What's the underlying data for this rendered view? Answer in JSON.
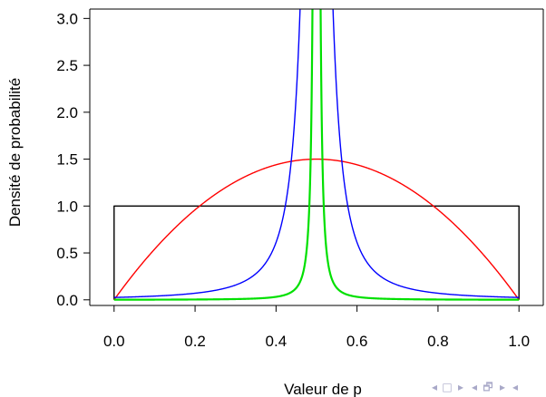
{
  "chart_data": {
    "type": "line",
    "title": "",
    "xlabel": "Valeur de p",
    "ylabel": "Densité de probabilité",
    "xlim": [
      -0.06,
      1.06
    ],
    "ylim": [
      -0.06,
      3.1
    ],
    "x_ticks": [
      "0.0",
      "0.2",
      "0.4",
      "0.6",
      "0.8",
      "1.0"
    ],
    "y_ticks": [
      "0.0",
      "0.5",
      "1.0",
      "1.5",
      "2.0",
      "2.5",
      "3.0"
    ],
    "grid": false,
    "legend": "none",
    "series": [
      {
        "distribution": "uniform",
        "alpha": 1,
        "beta": 1,
        "color": "#000000"
      },
      {
        "distribution": "beta",
        "alpha": 2,
        "beta": 2,
        "color": "#ff0000"
      },
      {
        "distribution": "cauchy",
        "location": 0.5,
        "scale": 0.02,
        "color": "#0000ff"
      },
      {
        "distribution": "cauchy",
        "location": 0.5,
        "scale": 0.001,
        "color": "#00e000"
      }
    ]
  },
  "nav": {
    "glyphs": [
      "◂",
      "□",
      "▸",
      "◂",
      "🗗",
      "▸",
      "◂"
    ]
  }
}
